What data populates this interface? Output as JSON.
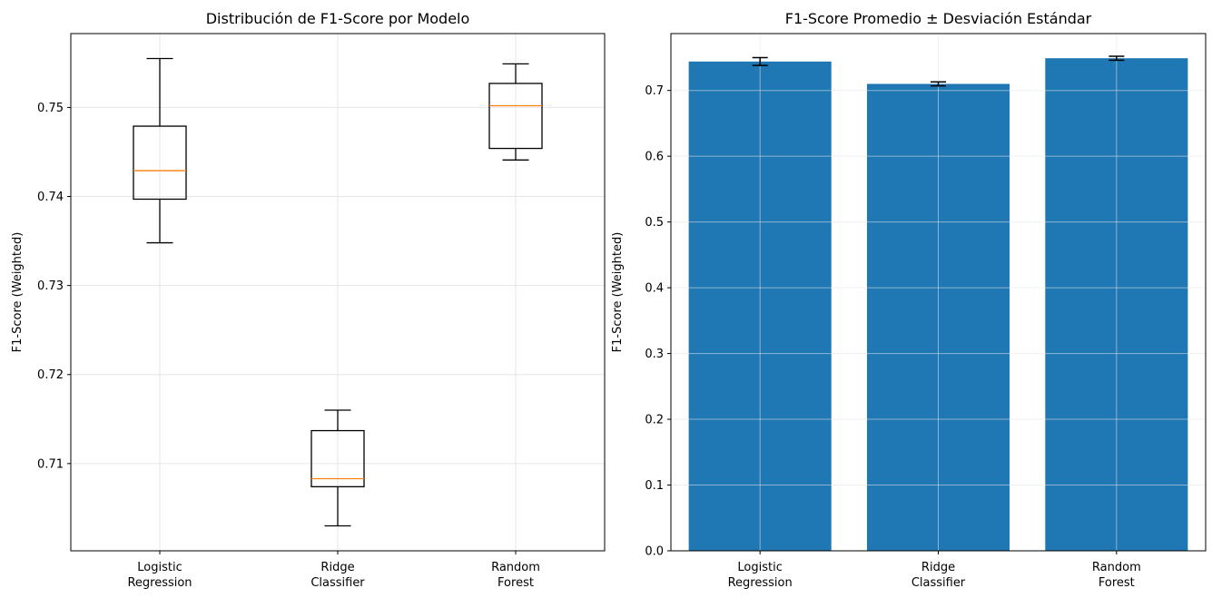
{
  "chart_data": [
    {
      "type": "box",
      "title": "Distribución de F1-Score por Modelo",
      "xlabel": "",
      "ylabel": "F1-Score (Weighted)",
      "categories": [
        [
          "Logistic",
          "Regression"
        ],
        [
          "Ridge",
          "Classifier"
        ],
        [
          "Random",
          "Forest"
        ]
      ],
      "ylim": [
        0.7002,
        0.7583
      ],
      "yticks": [
        0.71,
        0.72,
        0.73,
        0.74,
        0.75
      ],
      "ytick_labels": [
        "0.71",
        "0.72",
        "0.73",
        "0.74",
        "0.75"
      ],
      "grid": true,
      "boxes": [
        {
          "whisker_low": 0.7348,
          "q1": 0.7397,
          "median": 0.7429,
          "q3": 0.7479,
          "whisker_high": 0.7555
        },
        {
          "whisker_low": 0.703,
          "q1": 0.7074,
          "median": 0.7083,
          "q3": 0.7137,
          "whisker_high": 0.716
        },
        {
          "whisker_low": 0.7441,
          "q1": 0.7454,
          "median": 0.7502,
          "q3": 0.7527,
          "whisker_high": 0.7549
        }
      ],
      "colors": {
        "box": "#000000",
        "median": "#ff7f0e"
      }
    },
    {
      "type": "bar",
      "title": "F1-Score Promedio ± Desviación Estándar",
      "xlabel": "",
      "ylabel": "F1-Score (Weighted)",
      "categories": [
        [
          "Logistic",
          "Regression"
        ],
        [
          "Ridge",
          "Classifier"
        ],
        [
          "Random",
          "Forest"
        ]
      ],
      "values": [
        0.744,
        0.71,
        0.749
      ],
      "errors": [
        0.006,
        0.003,
        0.003
      ],
      "ylim": [
        0,
        0.7865
      ],
      "yticks": [
        0.0,
        0.1,
        0.2,
        0.3,
        0.4,
        0.5,
        0.6,
        0.7
      ],
      "ytick_labels": [
        "0.0",
        "0.1",
        "0.2",
        "0.3",
        "0.4",
        "0.5",
        "0.6",
        "0.7"
      ],
      "grid": true,
      "colors": {
        "bar": "#1f77b4",
        "error": "#000000"
      }
    }
  ]
}
